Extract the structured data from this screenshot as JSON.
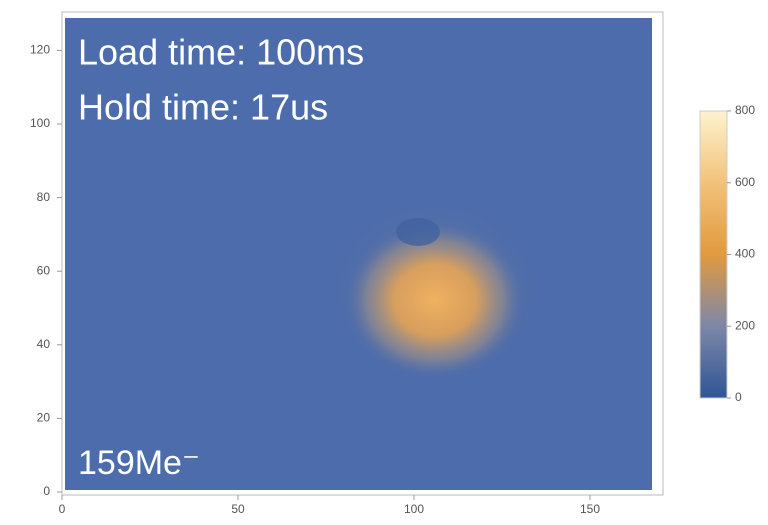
{
  "chart_data": {
    "type": "heatmap",
    "annotations": [
      "Load time: 100ms",
      "Hold time: 17us",
      "159Me⁻"
    ],
    "xlim": [
      0,
      170
    ],
    "xticks": [
      0,
      50,
      100,
      150
    ],
    "ylim": [
      0,
      130
    ],
    "yticks": [
      0,
      20,
      40,
      60,
      80,
      100,
      120
    ],
    "colorbar": {
      "lim": [
        0,
        800
      ],
      "ticks": [
        0,
        200,
        400,
        600,
        800
      ],
      "colors": [
        "#2f5596",
        "#7d87a8",
        "#e19a3e",
        "#f2c27a",
        "#fdf3cf"
      ]
    },
    "background": "#4d6cab"
  }
}
